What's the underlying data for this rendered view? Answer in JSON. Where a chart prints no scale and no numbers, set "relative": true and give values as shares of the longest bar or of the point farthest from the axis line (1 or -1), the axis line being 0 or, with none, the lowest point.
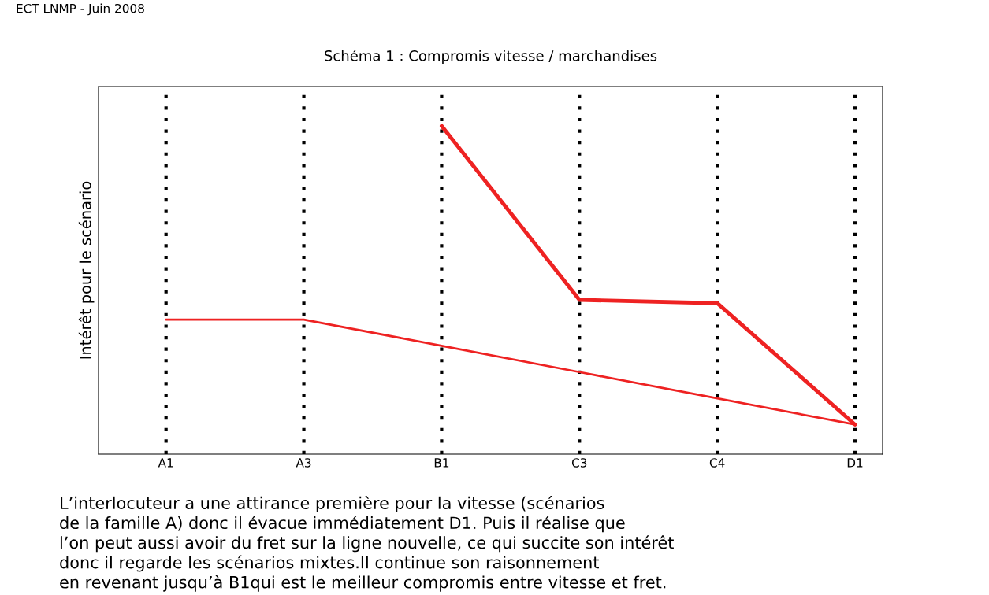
{
  "chart_data": {
    "type": "line",
    "title": "Schéma 1 : Compromis vitesse / marchandises",
    "ylabel": "Intérêt pour le scénario",
    "categories": [
      "A1",
      "A3",
      "B1",
      "C3",
      "C4",
      "D1"
    ],
    "relative": true,
    "tick_labels": "x",
    "grid": "x",
    "legend": false,
    "marker": "none",
    "line_style": "solid",
    "series": [
      {
        "color": "#ee2222",
        "values": [
          0.41,
          0.41,
          0.33,
          0.25,
          0.17,
          0.09
        ]
      },
      {
        "color": "#ee2222",
        "values": [
          null,
          null,
          1,
          0.47,
          0.46,
          0.09
        ]
      }
    ],
    "annotations": [
      "ECT LNMP - Juin 2008",
      "L’interlocuteur a une attirance première pour la vitesse (scénarios\nde la famille A) donc il évacue immédiatement D1. Puis il réalise que\nl’on peut aussi avoir du fret sur la ligne nouvelle, ce qui succite son intérêt\ndonc il regarde les scénarios mixtes.Il continue son raisonnement\nen revenant jusqu’à B1qui est le meilleur compromis entre vitesse et fret."
    ]
  }
}
